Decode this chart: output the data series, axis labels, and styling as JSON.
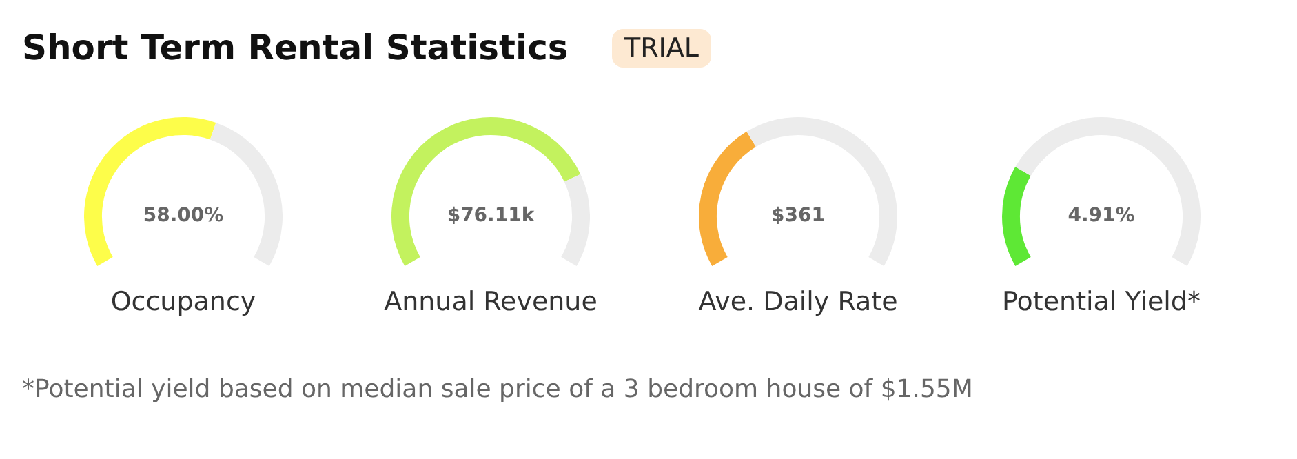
{
  "chart_data": [
    {
      "type": "other",
      "title": "Short Term Rental Statistics",
      "subtitle": "TRIAL",
      "annotations": [
        "*Potential yield based on median sale price of a 3 bedroom house of $1.55M"
      ]
    },
    {
      "type": "donut",
      "xlabel": "Occupancy",
      "categories": [
        null,
        null
      ],
      "values": [
        58,
        42
      ],
      "colors": [
        "#fdfd4a",
        "#ececec"
      ],
      "annotations": [
        "58.00%"
      ]
    },
    {
      "type": "donut",
      "xlabel": "Annual Revenue",
      "categories": [
        null,
        null
      ],
      "values": [
        77,
        23
      ],
      "colors": [
        "#c3f25e",
        "#ececec"
      ],
      "annotations": [
        "$76.11k"
      ]
    },
    {
      "type": "donut",
      "xlabel": "Ave. Daily Rate",
      "categories": [
        null,
        null
      ],
      "values": [
        37,
        63
      ],
      "colors": [
        "#f8ad3a",
        "#ececec"
      ],
      "annotations": [
        "$361"
      ]
    },
    {
      "type": "donut",
      "xlabel": "Potential Yield*",
      "categories": [
        null,
        null
      ],
      "values": [
        25,
        75
      ],
      "colors": [
        "#5ee835",
        "#ececec"
      ],
      "annotations": [
        "4.91%"
      ]
    }
  ]
}
